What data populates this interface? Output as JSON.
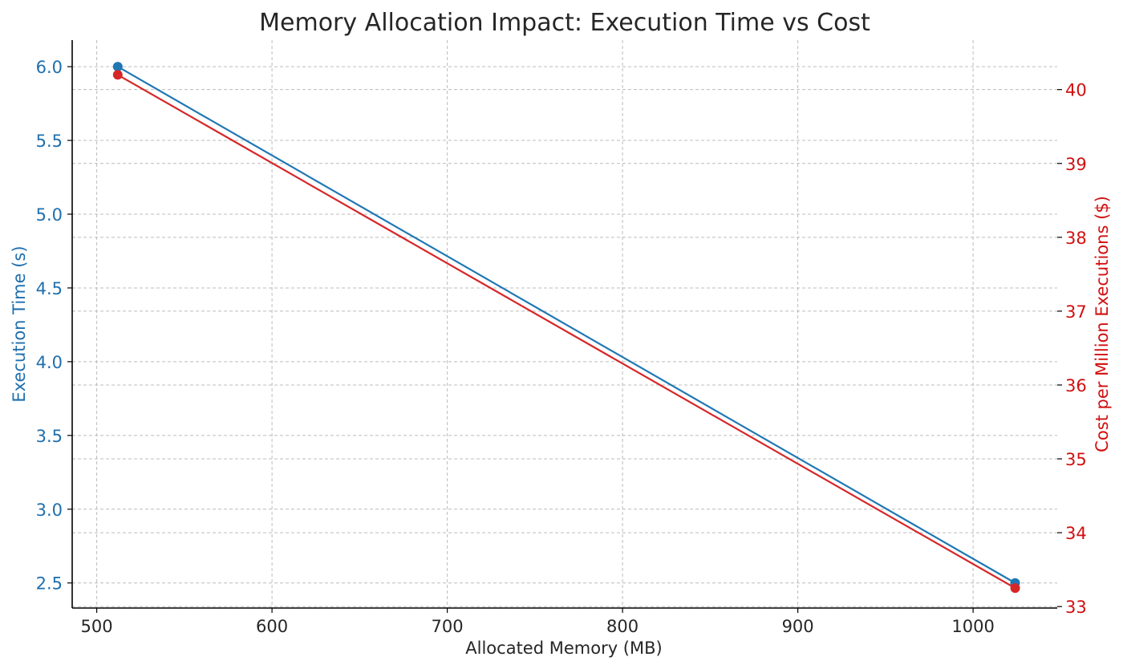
{
  "chart_data": {
    "type": "line",
    "title": "Memory Allocation Impact: Execution Time vs Cost",
    "xlabel": "Allocated Memory (MB)",
    "ylabel": "Execution Time (s)",
    "y2label": "Cost per Million Executions ($)",
    "xlim": [
      486,
      1048
    ],
    "ylim": [
      2.33,
      6.18
    ],
    "y2lim": [
      32.98,
      40.67
    ],
    "grid": true,
    "x_ticks": [
      "500",
      "600",
      "700",
      "800",
      "900",
      "1000"
    ],
    "y_ticks": [
      "2.5",
      "3.0",
      "3.5",
      "4.0",
      "4.5",
      "5.0",
      "5.5",
      "6.0"
    ],
    "y2_ticks": [
      "33",
      "34",
      "35",
      "36",
      "37",
      "38",
      "39",
      "40"
    ],
    "series": [
      {
        "axis": "left",
        "x": [
          512,
          1024
        ],
        "values": [
          6.0,
          2.5
        ],
        "color": "#1f77b4"
      },
      {
        "axis": "right",
        "x": [
          512,
          1024
        ],
        "values": [
          40.2,
          33.25
        ],
        "color": "#d62728"
      }
    ],
    "colors": {
      "left_axis": "#1f6fae",
      "right_axis": "#d10f0f",
      "spine": "#000000",
      "grid": "#bcbcbc"
    }
  }
}
